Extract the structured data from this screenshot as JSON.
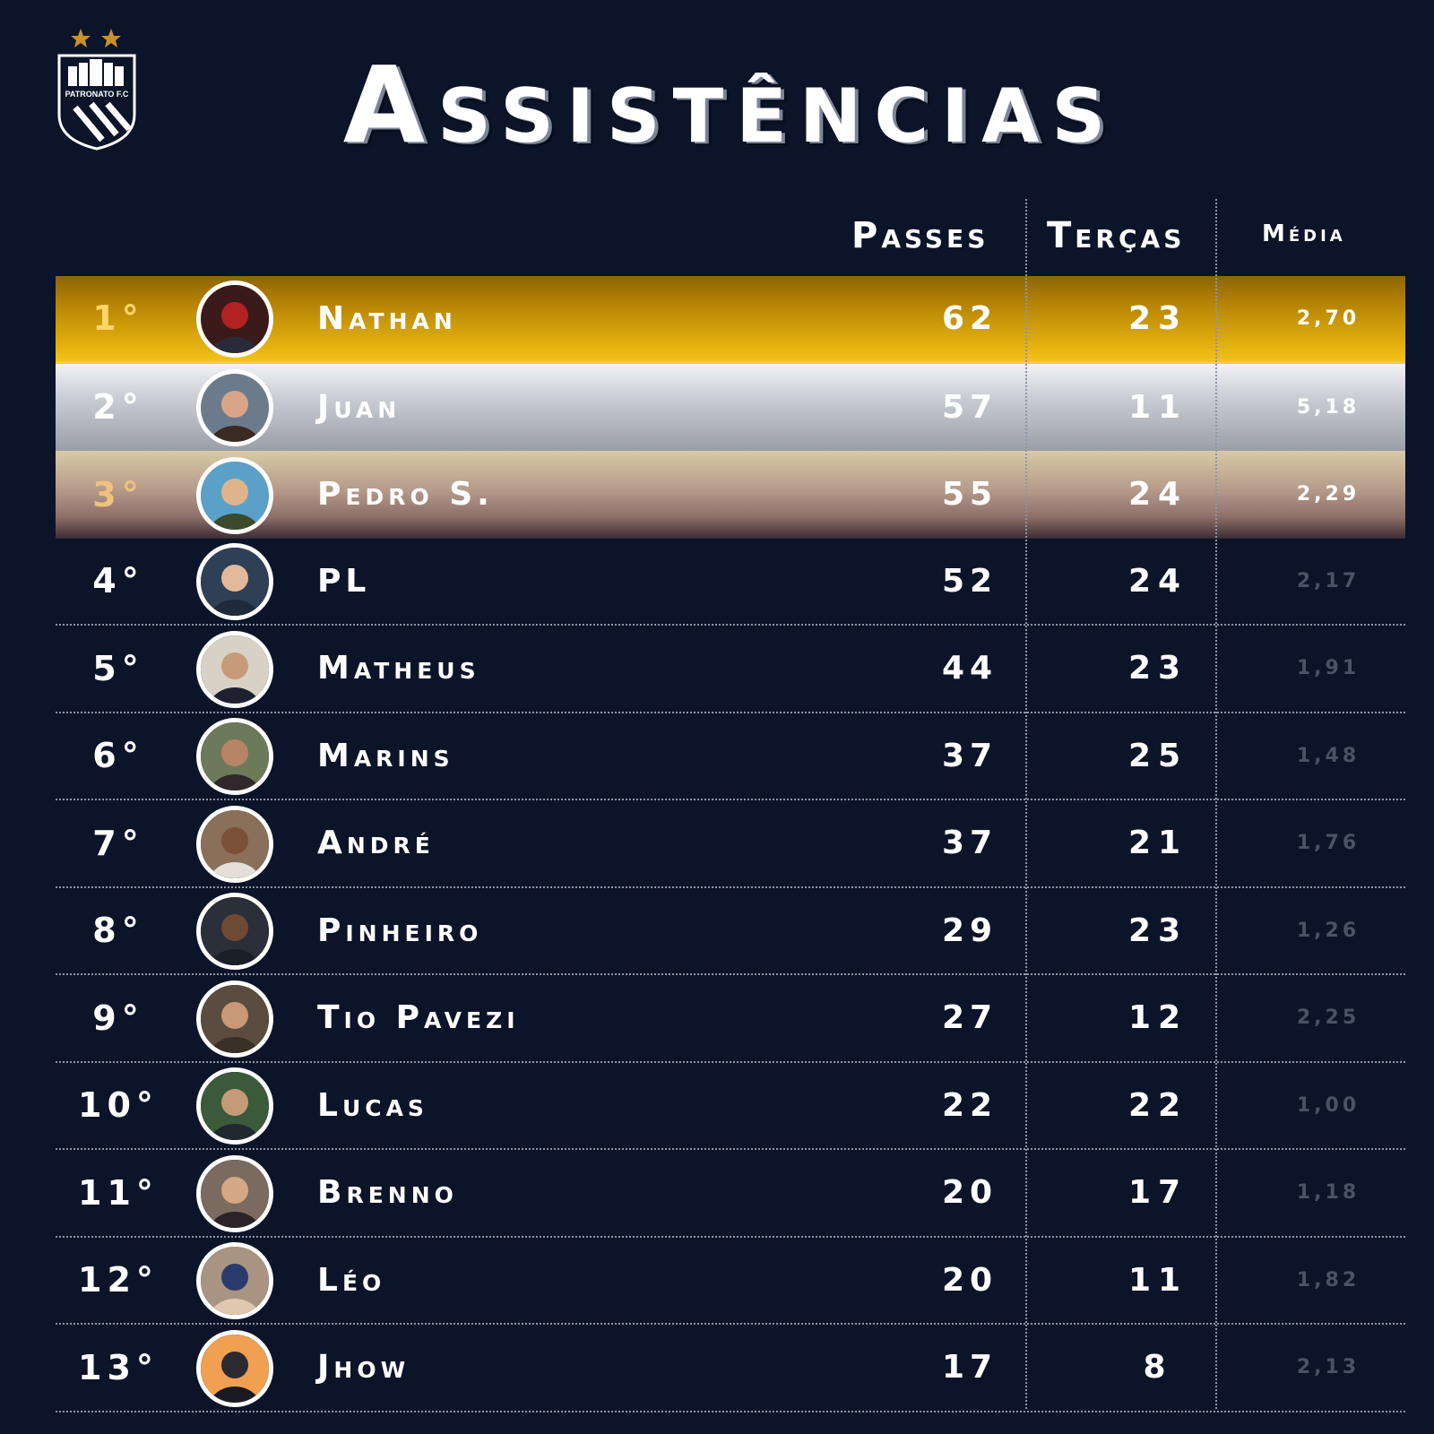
{
  "title": "Assistências",
  "logo": {
    "stars": 2,
    "text": "PATRONATO F.C"
  },
  "headers": {
    "passes": "Passes",
    "tercas": "Terças",
    "media": "Média"
  },
  "colors": {
    "background": "#0b1428",
    "gold": "#e6b410",
    "silver": "#c9ccd3",
    "bronze": "#b59a8a"
  },
  "rows": [
    {
      "pos": "1°",
      "name": "Nathan",
      "passes": "62",
      "tercas": "23",
      "media": "2,70",
      "avatar": "avatar-nathan"
    },
    {
      "pos": "2°",
      "name": "Juan",
      "passes": "57",
      "tercas": "11",
      "media": "5,18",
      "avatar": "avatar-juan"
    },
    {
      "pos": "3°",
      "name": "Pedro S.",
      "passes": "55",
      "tercas": "24",
      "media": "2,29",
      "avatar": "avatar-pedro-s"
    },
    {
      "pos": "4°",
      "name": "PL",
      "passes": "52",
      "tercas": "24",
      "media": "2,17",
      "avatar": "avatar-pl"
    },
    {
      "pos": "5°",
      "name": "Matheus",
      "passes": "44",
      "tercas": "23",
      "media": "1,91",
      "avatar": "avatar-matheus"
    },
    {
      "pos": "6°",
      "name": "Marins",
      "passes": "37",
      "tercas": "25",
      "media": "1,48",
      "avatar": "avatar-marins"
    },
    {
      "pos": "7°",
      "name": "André",
      "passes": "37",
      "tercas": "21",
      "media": "1,76",
      "avatar": "avatar-andre"
    },
    {
      "pos": "8°",
      "name": "Pinheiro",
      "passes": "29",
      "tercas": "23",
      "media": "1,26",
      "avatar": "avatar-pinheiro"
    },
    {
      "pos": "9°",
      "name": "Tio Pavezi",
      "passes": "27",
      "tercas": "12",
      "media": "2,25",
      "avatar": "avatar-tio-pavezi"
    },
    {
      "pos": "10°",
      "name": "Lucas",
      "passes": "22",
      "tercas": "22",
      "media": "1,00",
      "avatar": "avatar-lucas"
    },
    {
      "pos": "11°",
      "name": "Brenno",
      "passes": "20",
      "tercas": "17",
      "media": "1,18",
      "avatar": "avatar-brenno"
    },
    {
      "pos": "12°",
      "name": "Léo",
      "passes": "20",
      "tercas": "11",
      "media": "1,82",
      "avatar": "avatar-leo"
    },
    {
      "pos": "13°",
      "name": "Jhow",
      "passes": "17",
      "tercas": "8",
      "media": "2,13",
      "avatar": "avatar-jhow"
    }
  ]
}
